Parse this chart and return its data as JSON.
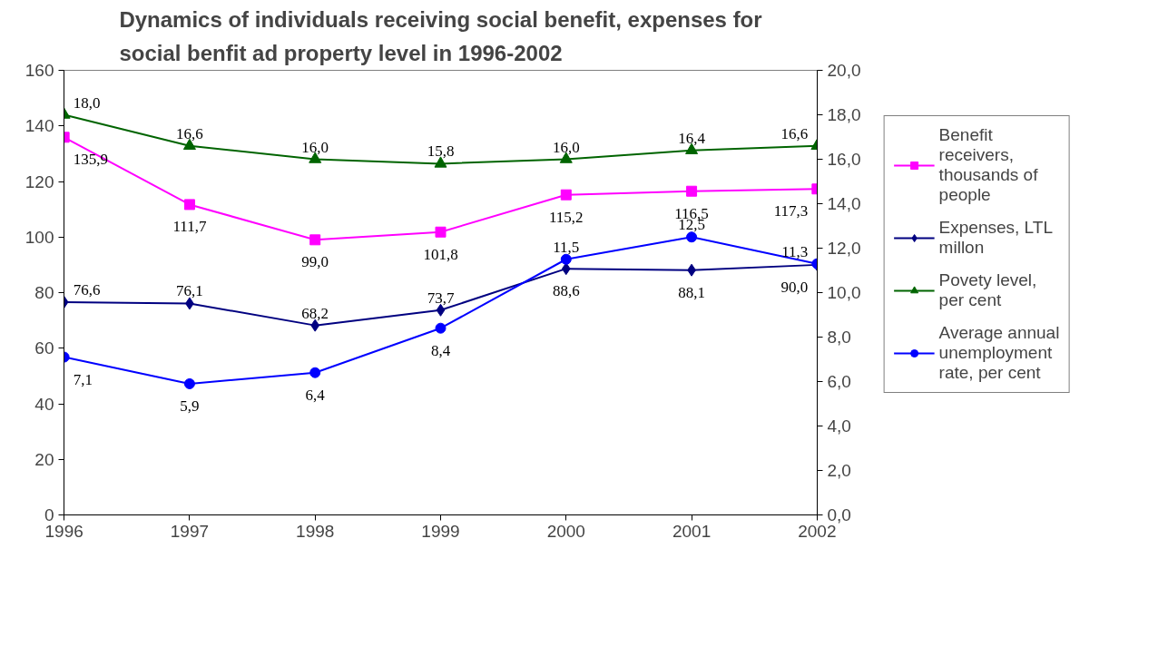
{
  "chart_data": {
    "type": "line",
    "title": "Dynamics of individuals receiving social benefit, expenses for social benfit ad property level in 1996-2002",
    "categories": [
      "1996",
      "1997",
      "1998",
      "1999",
      "2000",
      "2001",
      "2002"
    ],
    "series": [
      {
        "name": "Benefit receivers, thousands of people",
        "color": "#ff00ff",
        "marker": "square",
        "values": [
          135.9,
          111.7,
          99.0,
          101.8,
          115.2,
          116.5,
          117.3
        ],
        "value_labels": [
          "135,9",
          "111,7",
          "99,0",
          "101,8",
          "115,2",
          "116,5",
          "117,3"
        ]
      },
      {
        "name": "Expenses, LTL millon",
        "color": "#000080",
        "marker": "diamond",
        "values": [
          76.6,
          76.1,
          68.2,
          73.7,
          88.6,
          88.1,
          90.0
        ],
        "value_labels": [
          "76,6",
          "76,1",
          "68,2",
          "73,7",
          "88,6",
          "88,1",
          "90,0"
        ]
      },
      {
        "name": "Povety level, per cent",
        "color": "#006400",
        "marker": "triangle",
        "axis": "y2",
        "values": [
          18.0,
          16.6,
          16.0,
          15.8,
          16.0,
          16.4,
          16.6
        ],
        "value_labels": [
          "18,0",
          "16,6",
          "16,0",
          "15,8",
          "16,0",
          "16,4",
          "16,6"
        ]
      },
      {
        "name": "Average annual unemployment rate, per cent",
        "color": "#0000ff",
        "marker": "circle",
        "axis": "y2",
        "values": [
          7.1,
          5.9,
          6.4,
          8.4,
          11.5,
          12.5,
          11.3
        ],
        "value_labels": [
          "7,1",
          "5,9",
          "6,4",
          "8,4",
          "11,5",
          "12,5",
          "11,3"
        ]
      }
    ],
    "ylim": [
      0,
      160
    ],
    "yticks": [
      0,
      20,
      40,
      60,
      80,
      100,
      120,
      140,
      160
    ],
    "y2lim": [
      0,
      20
    ],
    "y2ticks": [
      {
        "value": 0,
        "label": "0,0"
      },
      {
        "value": 2,
        "label": "2,0"
      },
      {
        "value": 4,
        "label": "4,0"
      },
      {
        "value": 6,
        "label": "6,0"
      },
      {
        "value": 8,
        "label": "8,0"
      },
      {
        "value": 10,
        "label": "10,0"
      },
      {
        "value": 12,
        "label": "12,0"
      },
      {
        "value": 14,
        "label": "14,0"
      },
      {
        "value": 16,
        "label": "16,0"
      },
      {
        "value": 18,
        "label": "18,0"
      },
      {
        "value": 20,
        "label": "20,0"
      }
    ],
    "grid": false,
    "legend": "right",
    "line_style": "solid"
  }
}
